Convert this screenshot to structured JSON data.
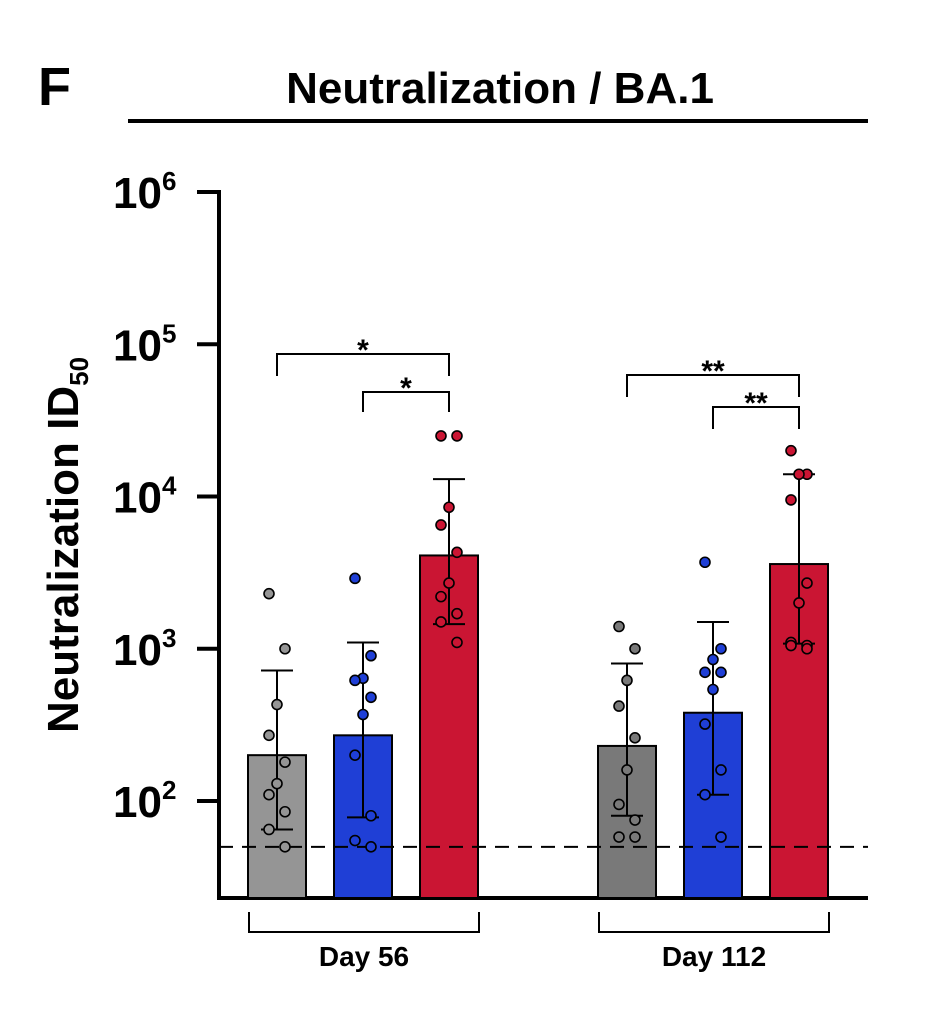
{
  "panel_letter": "F",
  "chart_data": {
    "type": "bar",
    "title": "Neutralization / BA.1",
    "ylabel": "Neutralization ID",
    "ylabel_subscript": "50",
    "yscale": "log",
    "ylim": [
      30,
      1000000
    ],
    "yticks": [
      {
        "value": 100,
        "base": "10",
        "exp": "2"
      },
      {
        "value": 1000,
        "base": "10",
        "exp": "3"
      },
      {
        "value": 10000,
        "base": "10",
        "exp": "4"
      },
      {
        "value": 100000,
        "base": "10",
        "exp": "5"
      },
      {
        "value": 1000000,
        "base": "10",
        "exp": "6"
      }
    ],
    "limit_of_detection": 50,
    "grid": false,
    "groups": [
      {
        "label": "Day 56",
        "bars": [
          {
            "color": "#959595",
            "value": 200,
            "err": [
              65,
              720
            ],
            "points": [
              2300,
              1000,
              430,
              270,
              180,
              130,
              110,
              85,
              65,
              50
            ]
          },
          {
            "color": "#1f3fd6",
            "value": 270,
            "err": [
              78,
              1100
            ],
            "points": [
              2900,
              900,
              640,
              620,
              480,
              370,
              200,
              80,
              55,
              50
            ]
          },
          {
            "color": "#ca1533",
            "value": 4100,
            "err": [
              1450,
              13000
            ],
            "points": [
              25000,
              25000,
              8500,
              6500,
              4300,
              2700,
              2200,
              1700,
              1500,
              1100
            ]
          }
        ],
        "comparisons": [
          {
            "from": 0,
            "to": 2,
            "label": "*"
          },
          {
            "from": 1,
            "to": 2,
            "label": "*"
          }
        ]
      },
      {
        "label": "Day 112",
        "bars": [
          {
            "color": "#797979",
            "value": 230,
            "err": [
              80,
              800
            ],
            "points": [
              1400,
              1000,
              620,
              420,
              260,
              160,
              95,
              75,
              58,
              58
            ]
          },
          {
            "color": "#1f3fd6",
            "value": 380,
            "err": [
              110,
              1500
            ],
            "points": [
              3700,
              1000,
              850,
              700,
              700,
              540,
              320,
              160,
              110,
              58
            ]
          },
          {
            "color": "#ca1533",
            "value": 3600,
            "err": [
              1080,
              14000
            ],
            "points": [
              20000,
              14000,
              14000,
              9500,
              2700,
              2000,
              1100,
              1050,
              1050,
              1000
            ]
          }
        ],
        "comparisons": [
          {
            "from": 0,
            "to": 2,
            "label": "**"
          },
          {
            "from": 1,
            "to": 2,
            "label": "**"
          }
        ]
      }
    ]
  }
}
